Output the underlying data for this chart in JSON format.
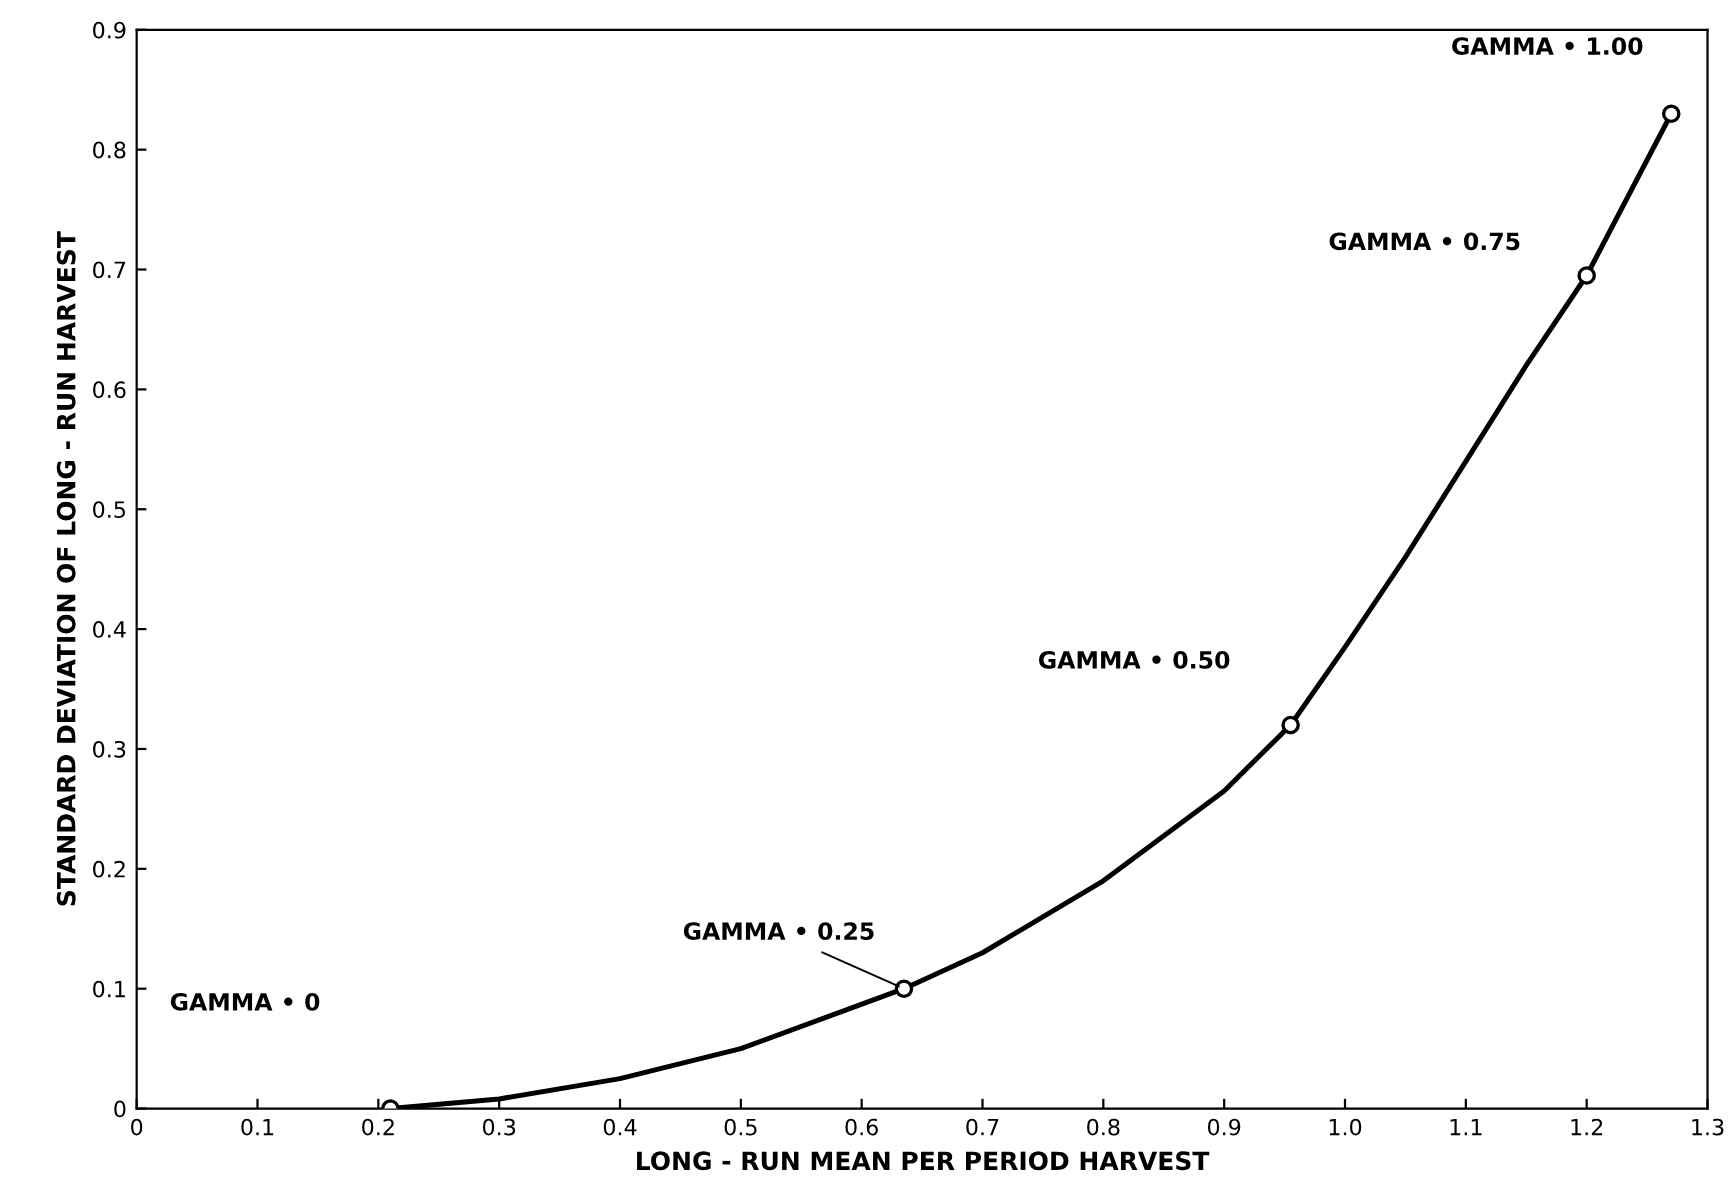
{
  "chart_data": {
    "type": "line",
    "xlabel": "LONG - RUN MEAN PER PERIOD HARVEST",
    "ylabel": "STANDARD DEVIATION OF LONG - RUN HARVEST",
    "xlim": [
      0,
      1.3
    ],
    "ylim": [
      0,
      0.9
    ],
    "xticks": [
      0,
      0.1,
      0.2,
      0.3,
      0.4,
      0.5,
      0.6,
      0.7,
      0.8,
      0.9,
      {
        "value": 1.0,
        "label": "1.0"
      },
      1.1,
      1.2,
      1.3
    ],
    "yticks": [
      0,
      0.1,
      0.2,
      0.3,
      0.4,
      0.5,
      0.6,
      0.7,
      0.8,
      0.9
    ],
    "grid": false,
    "legend": false,
    "series": [
      {
        "color": "#000000",
        "marker": "none",
        "line_style": "solid",
        "x": [
          0.21,
          0.3,
          0.4,
          0.5,
          0.635,
          0.7,
          0.8,
          0.9,
          0.955,
          1.0,
          1.05,
          1.1,
          1.15,
          1.2,
          1.27
        ],
        "values": [
          0,
          0.008,
          0.025,
          0.05,
          0.1,
          0.13,
          0.19,
          0.265,
          0.32,
          0.385,
          0.46,
          0.54,
          0.62,
          0.695,
          0.83
        ]
      },
      {
        "type": "scatter",
        "color": "#000000",
        "marker": "circle",
        "x": [
          0.21,
          0.635,
          0.955,
          1.2,
          1.27
        ],
        "values": [
          0,
          0.1,
          0.32,
          0.695,
          0.83
        ]
      }
    ],
    "annotations": [
      "GAMMA • 0",
      {
        "text": "GAMMA • 0.25",
        "x": 0.635,
        "y": 0.1
      },
      "GAMMA • 0.50",
      "GAMMA • 0.75",
      "GAMMA • 1.00"
    ]
  }
}
